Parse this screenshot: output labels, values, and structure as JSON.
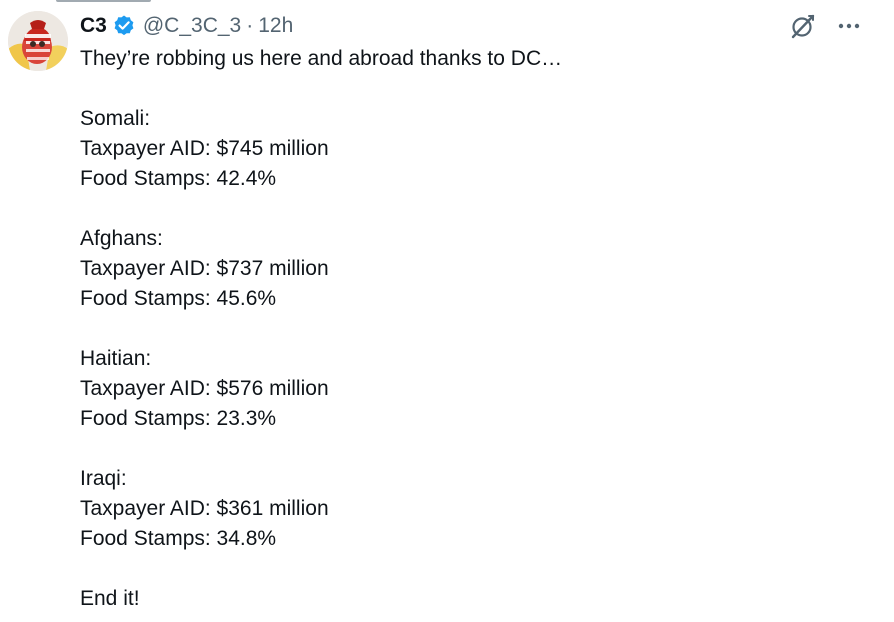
{
  "tweet": {
    "author": {
      "display_name": "C3",
      "handle": "@C_3C_3",
      "verified": true,
      "avatar_icon": "avatar-photo"
    },
    "separator": "·",
    "timestamp": "12h",
    "actions": {
      "grok_icon": "grok-icon",
      "more_icon": "more-icon"
    },
    "text": {
      "intro": "They’re robbing us here and abroad thanks to DC…",
      "groups": [
        {
          "name": "Somali:",
          "aid": "Taxpayer AID: $745 million",
          "food": "Food Stamps: 42.4%"
        },
        {
          "name": "Afghans:",
          "aid": "Taxpayer AID: $737 million",
          "food": "Food Stamps: 45.6%"
        },
        {
          "name": "Haitian:",
          "aid": "Taxpayer AID: $576 million",
          "food": "Food Stamps: 23.3%"
        },
        {
          "name": "Iraqi:",
          "aid": "Taxpayer AID: $361 million",
          "food": "Food Stamps: 34.8%"
        }
      ],
      "closing": "End it!"
    },
    "colors": {
      "text_primary": "#0f1419",
      "text_secondary": "#536471",
      "verified_blue": "#1d9bf0"
    }
  }
}
